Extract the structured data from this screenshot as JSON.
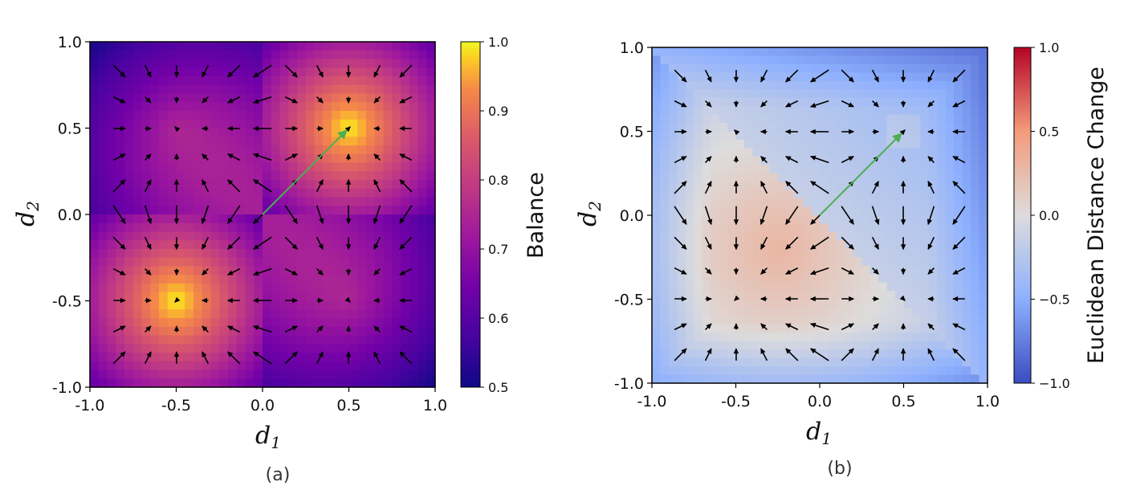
{
  "chart_data": [
    {
      "type": "heatmap",
      "panel": "a",
      "caption": "(a)",
      "xlabel": "d",
      "xlabel_sub": "1",
      "ylabel": "d",
      "ylabel_sub": "2",
      "xlim": [
        -1.0,
        1.0
      ],
      "ylim": [
        -1.0,
        1.0
      ],
      "xticks": [
        "-1.0",
        "-0.5",
        "0.0",
        "0.5",
        "1.0"
      ],
      "yticks": [
        "-1.0",
        "-0.5",
        "0.0",
        "0.5",
        "1.0"
      ],
      "colormap": "plasma",
      "colorbar": {
        "label": "Balance",
        "range": [
          0.5,
          1.0
        ],
        "ticks": [
          "0.5",
          "0.6",
          "0.7",
          "0.8",
          "0.9",
          "1.0"
        ]
      },
      "maxima": [
        [
          0.5,
          0.5
        ],
        [
          -0.5,
          -0.5
        ]
      ],
      "quiver_grid": {
        "start": -0.83,
        "stop": 0.83,
        "count": 11
      },
      "highlight_vector": {
        "from": [
          0.0,
          0.0
        ],
        "to": [
          0.5,
          0.5
        ],
        "color": "#4caf50"
      }
    },
    {
      "type": "heatmap",
      "panel": "b",
      "caption": "(b)",
      "xlabel": "d",
      "xlabel_sub": "1",
      "ylabel": "d",
      "ylabel_sub": "2",
      "xlim": [
        -1.0,
        1.0
      ],
      "ylim": [
        -1.0,
        1.0
      ],
      "xticks": [
        "-1.0",
        "-0.5",
        "0.0",
        "0.5",
        "1.0"
      ],
      "yticks": [
        "-1.0",
        "-0.5",
        "0.0",
        "0.5",
        "1.0"
      ],
      "colormap": "coolwarm",
      "colorbar": {
        "label": "Euclidean Distance Change",
        "range": [
          -1.0,
          1.0
        ],
        "ticks": [
          "−1.0",
          "−0.5",
          "0.0",
          "0.5",
          "1.0"
        ]
      },
      "quiver_grid": {
        "start": -0.83,
        "stop": 0.83,
        "count": 11
      },
      "highlight_vector": {
        "from": [
          0.0,
          0.0
        ],
        "to": [
          0.5,
          0.5
        ],
        "color": "#4caf50"
      }
    }
  ]
}
